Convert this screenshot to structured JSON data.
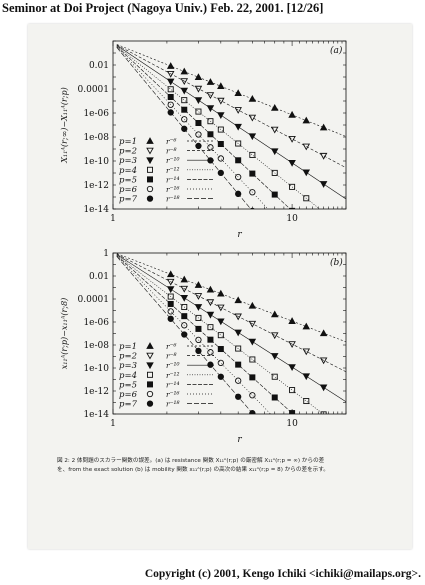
{
  "header": {
    "title": "Seminor at Doi Project (Nagoya Univ.) Feb. 22, 2001. [12/26]"
  },
  "footer": {
    "copyright": "Copyright (c) 2001, Kengo Ichiki <ichiki@mailaps.org>."
  },
  "caption": {
    "line1": "図 2: 2 体問題のスカラー関数の誤差。(a) は resistance 関数 X₁₁ᴬ(r;p) の厳密解 X₁₁ᴬ(r;p = ∞) からの差",
    "line2": "を、from the exact solution (b) は mobility 関数 x₁₁ᴬ(r;p) の高次の結果 x₁₁ᴬ(r;p = 8) からの差を示す。"
  },
  "colors": {
    "ink": "#111111",
    "paper": "#f3f3f0"
  },
  "chart_data": [
    {
      "type": "scatter",
      "panel_label": "(a)",
      "ylabel": "X₁₁ᴬ(r;∞)−X₁₁ᴬ(r;p)",
      "xlabel": "r",
      "xscale": "log",
      "yscale": "log",
      "xlim": [
        1,
        20
      ],
      "ylim": [
        1e-14,
        1
      ],
      "x_ticks": [
        "1",
        "10"
      ],
      "y_ticks": [
        "0.01",
        "0.0001",
        "1e-06",
        "1e-08",
        "1e-10",
        "1e-12",
        "1e-14"
      ],
      "x": [
        2.1,
        2.5,
        3.0,
        3.5,
        4.0,
        5.0,
        6.0,
        8.0,
        10.0,
        12.0,
        15.0
      ],
      "series": [
        {
          "name": "p=1",
          "marker": "triangle-filled",
          "line": "r^-6",
          "exponent": 6,
          "amp": 0.7
        },
        {
          "name": "p=2",
          "marker": "triangle-down-open",
          "line": "r^-8",
          "exponent": 8,
          "amp": 0.7
        },
        {
          "name": "p=3",
          "marker": "triangle-down-filled",
          "line": "r^-10",
          "exponent": 10,
          "amp": 0.7
        },
        {
          "name": "p=4",
          "marker": "square-open",
          "line": "r^-12",
          "exponent": 12,
          "amp": 0.7
        },
        {
          "name": "p=5",
          "marker": "square-filled",
          "line": "r^-14",
          "exponent": 14,
          "amp": 0.7
        },
        {
          "name": "p=6",
          "marker": "circle-open",
          "line": "r^-16",
          "exponent": 16,
          "amp": 0.7
        },
        {
          "name": "p=7",
          "marker": "circle-filled",
          "line": "r^-18",
          "exponent": 18,
          "amp": 0.7
        }
      ],
      "legend_lines": [
        "r⁻⁶",
        "r⁻⁸",
        "r⁻¹⁰",
        "r⁻¹²",
        "r⁻¹⁴",
        "r⁻¹⁶",
        "r⁻¹⁸"
      ]
    },
    {
      "type": "scatter",
      "panel_label": "(b)",
      "ylabel": "x₁₁ᴬ(r;p)−x₁₁ᴬ(r;8)",
      "xlabel": "r",
      "xscale": "log",
      "yscale": "log",
      "xlim": [
        1,
        20
      ],
      "ylim": [
        1e-14,
        1
      ],
      "x_ticks": [
        "1",
        "10"
      ],
      "y_ticks": [
        "1",
        "0.01",
        "0.0001",
        "1e-06",
        "1e-08",
        "1e-10",
        "1e-12",
        "1e-14"
      ],
      "x": [
        2.1,
        2.5,
        3.0,
        3.5,
        4.0,
        5.0,
        6.0,
        8.0,
        10.0,
        12.0,
        15.0
      ],
      "series": [
        {
          "name": "p=1",
          "marker": "triangle-filled",
          "line": "r^-6",
          "exponent": 6,
          "amp": 1.2
        },
        {
          "name": "p=2",
          "marker": "triangle-down-open",
          "line": "r^-8",
          "exponent": 8,
          "amp": 1.2
        },
        {
          "name": "p=3",
          "marker": "triangle-down-filled",
          "line": "r^-10",
          "exponent": 10,
          "amp": 1.2
        },
        {
          "name": "p=4",
          "marker": "square-open",
          "line": "r^-12",
          "exponent": 12,
          "amp": 1.2
        },
        {
          "name": "p=5",
          "marker": "square-filled",
          "line": "r^-14",
          "exponent": 14,
          "amp": 1.2
        },
        {
          "name": "p=6",
          "marker": "circle-open",
          "line": "r^-16",
          "exponent": 16,
          "amp": 1.2
        },
        {
          "name": "p=7",
          "marker": "circle-filled",
          "line": "r^-18",
          "exponent": 18,
          "amp": 1.2
        }
      ],
      "legend_lines": [
        "r⁻⁶",
        "r⁻⁸",
        "r⁻¹⁰",
        "r⁻¹²",
        "r⁻¹⁴",
        "r⁻¹⁶",
        "r⁻¹⁸"
      ]
    }
  ]
}
